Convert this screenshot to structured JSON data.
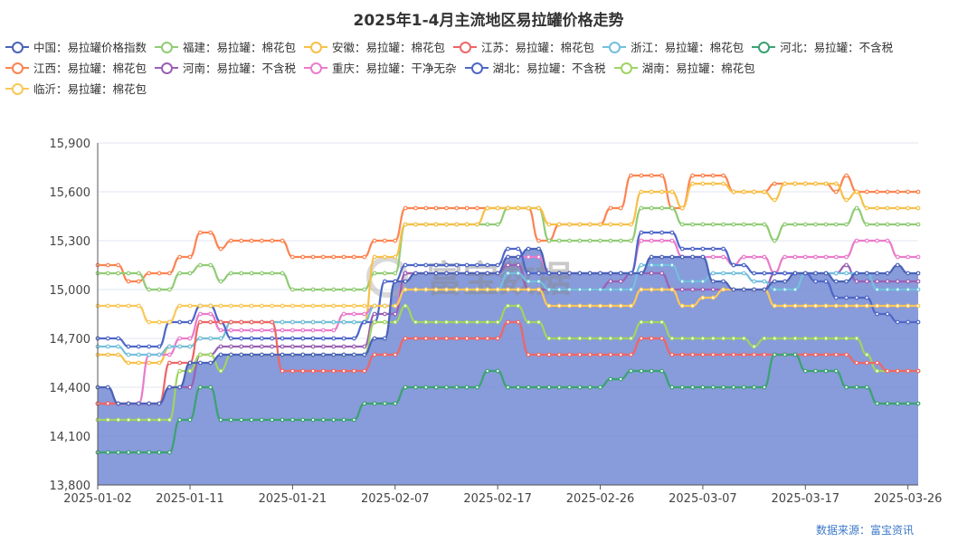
{
  "chart_data": {
    "type": "line",
    "title": "2025年1-4月主流地区易拉罐价格走势",
    "x_ticks": [
      "2025-01-02",
      "2025-01-11",
      "2025-01-21",
      "2025-02-07",
      "2025-02-17",
      "2025-02-26",
      "2025-03-07",
      "2025-03-17",
      "2025-03-26"
    ],
    "ylim": [
      13800,
      15900
    ],
    "y_ticks": [
      "13,800",
      "14,100",
      "14,400",
      "14,700",
      "15,000",
      "15,300",
      "15,600",
      "15,900"
    ],
    "y_tick_values": [
      13800,
      14100,
      14400,
      14700,
      15000,
      15300,
      15600,
      15900
    ],
    "grid": "horizontal",
    "legend_position": "top-left",
    "num_points": 81,
    "series": [
      {
        "name": "中国：易拉罐价格指数",
        "color": "#4a63b8",
        "area": "#7b90d6",
        "steps": [
          [
            0,
            14400
          ],
          [
            2,
            14300
          ],
          [
            7,
            14400
          ],
          [
            9,
            14550
          ],
          [
            12,
            14600
          ],
          [
            27,
            14700
          ],
          [
            29,
            15050
          ],
          [
            31,
            15100
          ],
          [
            40,
            15200
          ],
          [
            42,
            15250
          ],
          [
            44,
            15100
          ],
          [
            54,
            15200
          ],
          [
            56,
            15200
          ],
          [
            60,
            15050
          ],
          [
            62,
            15000
          ],
          [
            66,
            15050
          ],
          [
            68,
            15100
          ],
          [
            72,
            15050
          ],
          [
            74,
            15100
          ],
          [
            78,
            15150
          ],
          [
            79,
            15100
          ]
        ]
      },
      {
        "name": "福建：易拉罐：棉花包",
        "color": "#91cc75",
        "steps": [
          [
            0,
            15100
          ],
          [
            5,
            15000
          ],
          [
            8,
            15100
          ],
          [
            10,
            15150
          ],
          [
            12,
            15050
          ],
          [
            13,
            15100
          ],
          [
            19,
            15000
          ],
          [
            27,
            15100
          ],
          [
            30,
            15400
          ],
          [
            40,
            15500
          ],
          [
            44,
            15300
          ],
          [
            53,
            15500
          ],
          [
            57,
            15400
          ],
          [
            66,
            15300
          ],
          [
            67,
            15400
          ],
          [
            73,
            15400
          ],
          [
            74,
            15500
          ],
          [
            75,
            15400
          ]
        ]
      },
      {
        "name": "安徽：易拉罐：棉花包",
        "color": "#f7c04a",
        "steps": [
          [
            0,
            14600
          ],
          [
            3,
            14550
          ],
          [
            7,
            14650
          ],
          [
            10,
            14700
          ],
          [
            13,
            14800
          ],
          [
            27,
            15200
          ],
          [
            30,
            15400
          ],
          [
            38,
            15500
          ],
          [
            40,
            15500
          ],
          [
            44,
            15400
          ],
          [
            53,
            15600
          ],
          [
            57,
            15500
          ],
          [
            58,
            15650
          ],
          [
            62,
            15600
          ],
          [
            66,
            15550
          ],
          [
            67,
            15650
          ],
          [
            73,
            15550
          ],
          [
            74,
            15600
          ],
          [
            75,
            15500
          ]
        ]
      },
      {
        "name": "江苏：易拉罐：棉花包",
        "color": "#ee6666",
        "steps": [
          [
            0,
            14300
          ],
          [
            7,
            14550
          ],
          [
            10,
            14800
          ],
          [
            12,
            14800
          ],
          [
            18,
            14500
          ],
          [
            27,
            14600
          ],
          [
            30,
            14700
          ],
          [
            40,
            14800
          ],
          [
            42,
            14600
          ],
          [
            53,
            14700
          ],
          [
            56,
            14600
          ],
          [
            66,
            14600
          ],
          [
            74,
            14550
          ],
          [
            77,
            14500
          ]
        ]
      },
      {
        "name": "浙江：易拉罐：棉花包",
        "color": "#73c0de",
        "steps": [
          [
            0,
            14650
          ],
          [
            3,
            14600
          ],
          [
            7,
            14650
          ],
          [
            10,
            14700
          ],
          [
            13,
            14800
          ],
          [
            24,
            14800
          ],
          [
            27,
            14900
          ],
          [
            30,
            15000
          ],
          [
            40,
            15100
          ],
          [
            42,
            15050
          ],
          [
            44,
            15000
          ],
          [
            53,
            15150
          ],
          [
            57,
            15050
          ],
          [
            60,
            15100
          ],
          [
            64,
            15050
          ],
          [
            66,
            15000
          ],
          [
            69,
            15100
          ],
          [
            76,
            15000
          ]
        ]
      },
      {
        "name": "河北：易拉罐：不含税",
        "color": "#3ba272",
        "steps": [
          [
            0,
            14000
          ],
          [
            8,
            14200
          ],
          [
            10,
            14400
          ],
          [
            12,
            14200
          ],
          [
            26,
            14300
          ],
          [
            30,
            14400
          ],
          [
            38,
            14500
          ],
          [
            40,
            14400
          ],
          [
            50,
            14450
          ],
          [
            52,
            14500
          ],
          [
            56,
            14400
          ],
          [
            66,
            14600
          ],
          [
            69,
            14500
          ],
          [
            73,
            14400
          ],
          [
            76,
            14300
          ]
        ]
      },
      {
        "name": "江西：易拉罐：棉花包",
        "color": "#fc8452",
        "steps": [
          [
            0,
            15150
          ],
          [
            3,
            15050
          ],
          [
            5,
            15100
          ],
          [
            8,
            15200
          ],
          [
            10,
            15350
          ],
          [
            12,
            15250
          ],
          [
            13,
            15300
          ],
          [
            19,
            15200
          ],
          [
            27,
            15300
          ],
          [
            30,
            15500
          ],
          [
            40,
            15500
          ],
          [
            43,
            15300
          ],
          [
            45,
            15400
          ],
          [
            50,
            15500
          ],
          [
            52,
            15700
          ],
          [
            56,
            15500
          ],
          [
            58,
            15700
          ],
          [
            62,
            15600
          ],
          [
            66,
            15650
          ],
          [
            72,
            15600
          ],
          [
            73,
            15700
          ],
          [
            74,
            15600
          ]
        ]
      },
      {
        "name": "河南：易拉罐：不含税",
        "color": "#9a60b4",
        "steps": [
          [
            0,
            14300
          ],
          [
            7,
            14400
          ],
          [
            10,
            14600
          ],
          [
            12,
            14650
          ],
          [
            27,
            14850
          ],
          [
            30,
            15100
          ],
          [
            40,
            15150
          ],
          [
            42,
            15000
          ],
          [
            50,
            15050
          ],
          [
            52,
            15100
          ],
          [
            56,
            15000
          ],
          [
            66,
            15100
          ],
          [
            73,
            15150
          ],
          [
            74,
            15050
          ]
        ]
      },
      {
        "name": "重庆：易拉罐：干净无杂",
        "color": "#ea7ccc",
        "steps": [
          [
            0,
            14300
          ],
          [
            5,
            14600
          ],
          [
            8,
            14700
          ],
          [
            10,
            14850
          ],
          [
            12,
            14750
          ],
          [
            24,
            14850
          ],
          [
            27,
            14900
          ],
          [
            30,
            15100
          ],
          [
            40,
            15200
          ],
          [
            44,
            15100
          ],
          [
            53,
            15300
          ],
          [
            57,
            15200
          ],
          [
            62,
            15150
          ],
          [
            63,
            15200
          ],
          [
            66,
            15100
          ],
          [
            67,
            15200
          ],
          [
            74,
            15300
          ],
          [
            78,
            15200
          ]
        ]
      },
      {
        "name": "湖北：易拉罐：不含税",
        "color": "#4f67c8",
        "steps": [
          [
            0,
            14700
          ],
          [
            3,
            14650
          ],
          [
            7,
            14800
          ],
          [
            10,
            14900
          ],
          [
            12,
            14800
          ],
          [
            13,
            14700
          ],
          [
            18,
            14700
          ],
          [
            26,
            14800
          ],
          [
            28,
            15050
          ],
          [
            30,
            15150
          ],
          [
            40,
            15250
          ],
          [
            42,
            15100
          ],
          [
            53,
            15350
          ],
          [
            57,
            15250
          ],
          [
            62,
            15150
          ],
          [
            64,
            15100
          ],
          [
            66,
            15100
          ],
          [
            70,
            15050
          ],
          [
            72,
            14950
          ],
          [
            76,
            14850
          ],
          [
            78,
            14800
          ]
        ]
      },
      {
        "name": "湖南：易拉罐：棉花包",
        "color": "#9fd462",
        "steps": [
          [
            0,
            14200
          ],
          [
            8,
            14500
          ],
          [
            10,
            14600
          ],
          [
            12,
            14500
          ],
          [
            13,
            14600
          ],
          [
            27,
            14800
          ],
          [
            30,
            14900
          ],
          [
            31,
            14800
          ],
          [
            33,
            14800
          ],
          [
            36,
            14800
          ],
          [
            40,
            14900
          ],
          [
            42,
            14800
          ],
          [
            44,
            14700
          ],
          [
            53,
            14800
          ],
          [
            56,
            14700
          ],
          [
            64,
            14650
          ],
          [
            65,
            14700
          ],
          [
            75,
            14600
          ],
          [
            76,
            14500
          ]
        ]
      },
      {
        "name": "临沂：易拉罐：棉花包",
        "color": "#fac858",
        "steps": [
          [
            0,
            14900
          ],
          [
            5,
            14800
          ],
          [
            8,
            14900
          ],
          [
            12,
            14900
          ],
          [
            26,
            14900
          ],
          [
            30,
            15000
          ],
          [
            40,
            15000
          ],
          [
            44,
            14900
          ],
          [
            53,
            15000
          ],
          [
            57,
            14900
          ],
          [
            59,
            14950
          ],
          [
            61,
            15000
          ],
          [
            66,
            14900
          ],
          [
            80,
            14900
          ]
        ]
      }
    ]
  },
  "watermark": "富宝数据",
  "source": "数据来源：富宝资讯"
}
